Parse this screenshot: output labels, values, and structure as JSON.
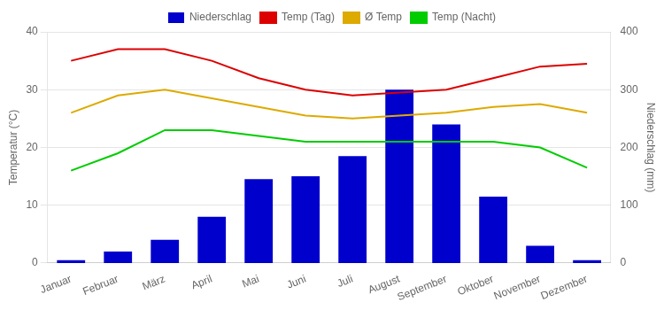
{
  "chart_data": {
    "type": "bar",
    "categories": [
      "Januar",
      "Februar",
      "März",
      "April",
      "Mai",
      "Juni",
      "Juli",
      "August",
      "September",
      "Oktober",
      "November",
      "Dezember"
    ],
    "series": [
      {
        "name": "Niederschlag",
        "type": "bar",
        "color": "#0000cc",
        "axis": "y2",
        "values": [
          5,
          20,
          40,
          80,
          145,
          150,
          185,
          300,
          240,
          115,
          30,
          5
        ]
      },
      {
        "name": "Temp (Tag)",
        "type": "line",
        "color": "#dd0000",
        "values": [
          35,
          37,
          37,
          35,
          32,
          30,
          29,
          29.5,
          30,
          32,
          34,
          34.5
        ]
      },
      {
        "name": "Ø Temp",
        "type": "line",
        "color": "#ddaa00",
        "values": [
          26,
          29,
          30,
          28.5,
          27,
          25.5,
          25,
          25.5,
          26,
          27,
          27.5,
          26
        ]
      },
      {
        "name": "Temp (Nacht)",
        "type": "line",
        "color": "#00cc00",
        "values": [
          16,
          19,
          23,
          23,
          22,
          21,
          21,
          21,
          21,
          21,
          20,
          16.5
        ]
      }
    ],
    "ylabel": "Temperatur (°C)",
    "y2label": "Niederschlag (mm)",
    "ylim": [
      0,
      40
    ],
    "yticks": [
      0,
      10,
      20,
      30,
      40
    ],
    "y2lim": [
      0,
      400
    ],
    "y2ticks": [
      0,
      100,
      200,
      300,
      400
    ],
    "grid": "y",
    "legend": "top"
  }
}
